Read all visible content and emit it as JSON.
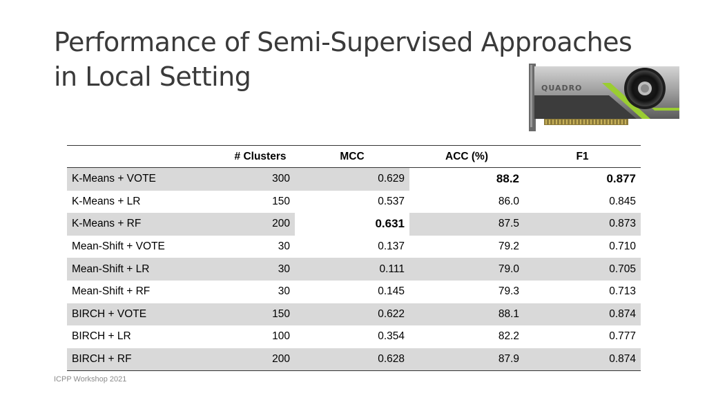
{
  "slide": {
    "title_line1": "Performance of Semi-Supervised Approaches",
    "title_line2": "in Local Setting",
    "footer": "ICPP Workshop 2021"
  },
  "image": {
    "label": "QUADRO",
    "icon": "gpu-graphics-card-icon",
    "accent_color": "#9acd32"
  },
  "table": {
    "headers": [
      "",
      "# Clusters",
      "MCC",
      "ACC (%)",
      "F1"
    ],
    "rows": [
      {
        "method": "K-Means + VOTE",
        "clusters": "300",
        "mcc": "0.629",
        "acc": "88.2",
        "f1": "0.877"
      },
      {
        "method": "K-Means + LR",
        "clusters": "150",
        "mcc": "0.537",
        "acc": "86.0",
        "f1": "0.845"
      },
      {
        "method": "K-Means + RF",
        "clusters": "200",
        "mcc": "0.631",
        "acc": "87.5",
        "f1": "0.873"
      },
      {
        "method": "Mean-Shift + VOTE",
        "clusters": "30",
        "mcc": "0.137",
        "acc": "79.2",
        "f1": "0.710"
      },
      {
        "method": "Mean-Shift + LR",
        "clusters": "30",
        "mcc": "0.111",
        "acc": "79.0",
        "f1": "0.705"
      },
      {
        "method": "Mean-Shift + RF",
        "clusters": "30",
        "mcc": "0.145",
        "acc": "79.3",
        "f1": "0.713"
      },
      {
        "method": "BIRCH + VOTE",
        "clusters": "150",
        "mcc": "0.622",
        "acc": "88.1",
        "f1": "0.874"
      },
      {
        "method": "BIRCH + LR",
        "clusters": "100",
        "mcc": "0.354",
        "acc": "82.2",
        "f1": "0.777"
      },
      {
        "method": "BIRCH + RF",
        "clusters": "200",
        "mcc": "0.628",
        "acc": "87.9",
        "f1": "0.874"
      }
    ],
    "best": {
      "mcc": "K-Means + RF",
      "acc": "K-Means + VOTE",
      "f1": "K-Means + VOTE"
    }
  }
}
